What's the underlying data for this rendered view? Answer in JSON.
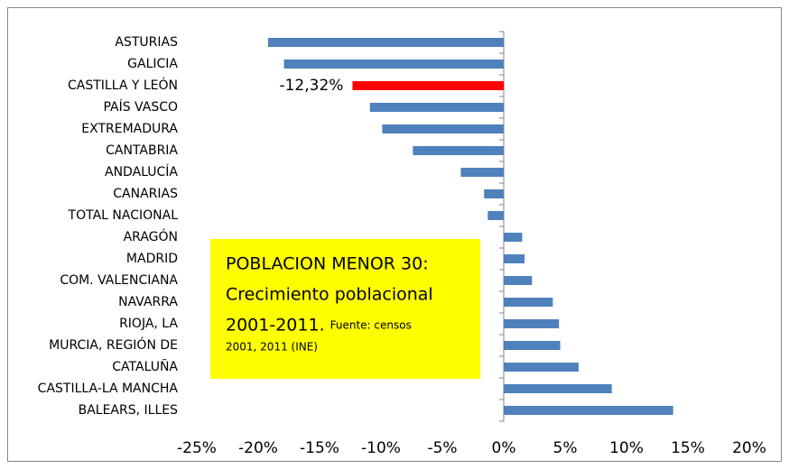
{
  "chart_data": {
    "type": "bar",
    "orientation": "horizontal",
    "categories": [
      "ASTURIAS",
      "GALICIA",
      "CASTILLA Y LEÓN",
      "PAÍS VASCO",
      "EXTREMADURA",
      "CANTABRIA",
      "ANDALUCÍA",
      "CANARIAS",
      "TOTAL NACIONAL",
      "ARAGÓN",
      "MADRID",
      "COM. VALENCIANA",
      "NAVARRA",
      "RIOJA, LA",
      "MURCIA, REGIÓN DE",
      "CATALUÑA",
      "CASTILLA-LA MANCHA",
      "BALEARS, ILLES"
    ],
    "values": [
      -19.2,
      -17.9,
      -12.32,
      -10.9,
      -9.9,
      -7.4,
      -3.5,
      -1.6,
      -1.3,
      1.5,
      1.7,
      2.3,
      4.0,
      4.5,
      4.6,
      6.1,
      8.8,
      13.8
    ],
    "value_labels": [
      null,
      null,
      "-12,32%",
      null,
      null,
      null,
      null,
      null,
      null,
      null,
      null,
      null,
      null,
      null,
      null,
      null,
      null,
      null
    ],
    "colors": [
      "#4f81bd",
      "#4f81bd",
      "#ff0000",
      "#4f81bd",
      "#4f81bd",
      "#4f81bd",
      "#4f81bd",
      "#4f81bd",
      "#4f81bd",
      "#4f81bd",
      "#4f81bd",
      "#4f81bd",
      "#4f81bd",
      "#4f81bd",
      "#4f81bd",
      "#4f81bd",
      "#4f81bd",
      "#4f81bd"
    ],
    "xlim": [
      -25,
      20
    ],
    "xticks": [
      {
        "value": -25,
        "label": "-25%"
      },
      {
        "value": -20,
        "label": "-20%"
      },
      {
        "value": -15,
        "label": "-15%"
      },
      {
        "value": -10,
        "label": "-10%"
      },
      {
        "value": -5,
        "label": "-5%"
      },
      {
        "value": 0,
        "label": "0%"
      },
      {
        "value": 5,
        "label": "5%"
      },
      {
        "value": 10,
        "label": "10%"
      },
      {
        "value": 15,
        "label": "15%"
      },
      {
        "value": 20,
        "label": "20%"
      }
    ],
    "annotation": {
      "title_lines": [
        "POBLACION MENOR 30:",
        "Crecimiento poblacional",
        "2001-2011."
      ],
      "source_lines": [
        "Fuente: censos",
        "2001, 2011 (INE)"
      ],
      "color": "#ffff00"
    }
  }
}
